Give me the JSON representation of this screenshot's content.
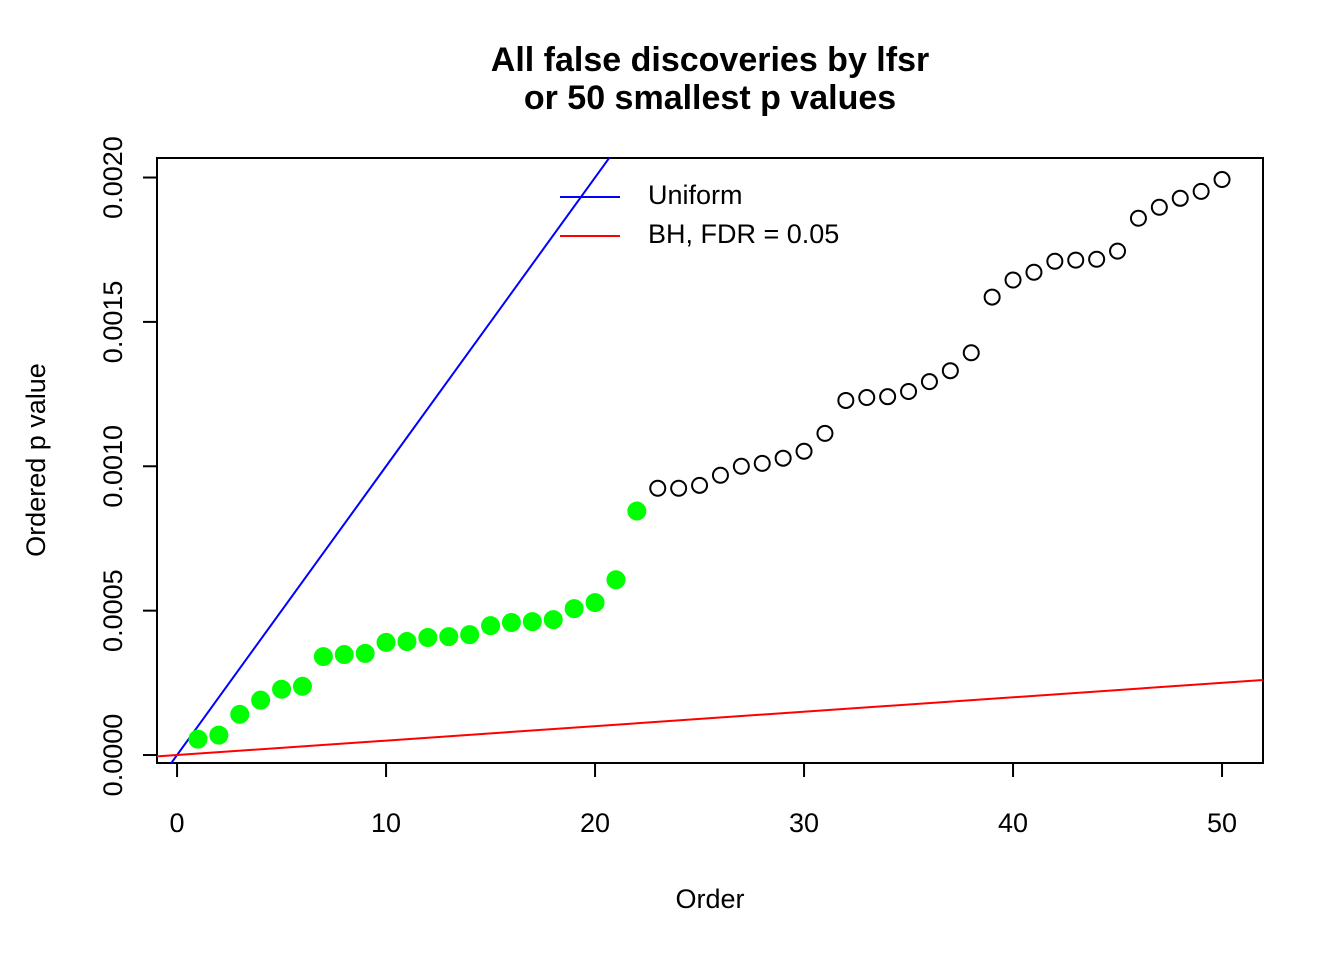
{
  "chart_data": {
    "type": "scatter",
    "title": [
      "All false discoveries by lfsr",
      "or 50 smallest p values"
    ],
    "x_label": "Order",
    "y_label": "Ordered p value",
    "xlim": [
      -0.96,
      51.96
    ],
    "ylim": [
      -2.76e-05,
      0.0020676
    ],
    "xticks": [
      0,
      10,
      20,
      30,
      40,
      50
    ],
    "yticks": [
      {
        "value": 0,
        "label": "0.0000"
      },
      {
        "value": 0.0005,
        "label": "0.0005"
      },
      {
        "value": 0.001,
        "label": "0.0010"
      },
      {
        "value": 0.0015,
        "label": "0.0015"
      },
      {
        "value": 0.002,
        "label": "0.0020"
      }
    ],
    "legend": "top",
    "points": [
      {
        "color": "#00ff00",
        "filled": true,
        "x": [
          1,
          2,
          3,
          4,
          5,
          6,
          7,
          8,
          9,
          10,
          11,
          12,
          13,
          14,
          15,
          16,
          17,
          18,
          19,
          20,
          21,
          22
        ],
        "values": [
          5.5e-05,
          6.9e-05,
          0.000141,
          0.00019,
          0.000228,
          0.000238,
          0.000341,
          0.000348,
          0.000352,
          0.00039,
          0.000393,
          0.000407,
          0.00041,
          0.000417,
          0.000448,
          0.000459,
          0.000462,
          0.000469,
          0.000507,
          0.000528,
          0.000607,
          0.000845
        ]
      },
      {
        "color": "#000000",
        "filled": false,
        "x": [
          23,
          24,
          25,
          26,
          27,
          28,
          29,
          30,
          31,
          32,
          33,
          34,
          35,
          36,
          37,
          38,
          39,
          40,
          41,
          42,
          43,
          44,
          45,
          46,
          47,
          48,
          49,
          50
        ],
        "values": [
          0.000924,
          0.000924,
          0.000934,
          0.000969,
          0.001,
          0.00101,
          0.001028,
          0.001052,
          0.001114,
          0.001228,
          0.001238,
          0.001241,
          0.001259,
          0.001293,
          0.001331,
          0.001393,
          0.001586,
          0.001645,
          0.001672,
          0.00171,
          0.001714,
          0.001717,
          0.001745,
          0.001859,
          0.001897,
          0.001928,
          0.001952,
          0.001993
        ]
      }
    ],
    "lines": [
      {
        "name": "Uniform",
        "color": "#0000ff",
        "slope": 0.0001,
        "intercept": 0
      },
      {
        "name": "BH, FDR = 0.05",
        "color": "#ff0000",
        "slope": 5e-06,
        "intercept": 0
      }
    ]
  }
}
